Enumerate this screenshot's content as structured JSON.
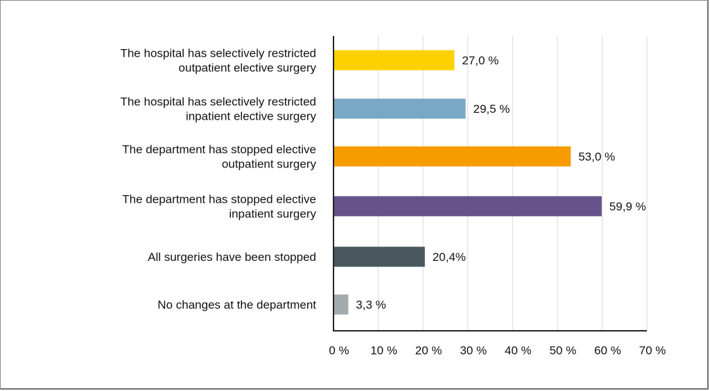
{
  "chart_data": {
    "type": "bar",
    "orientation": "horizontal",
    "categories": [
      [
        "The hospital has selectively restricted",
        "outpatient elective surgery"
      ],
      [
        "The hospital has selectively restricted",
        "inpatient elective surgery"
      ],
      [
        "The department has stopped elective",
        "outpatient surgery"
      ],
      [
        "The department has stopped elective",
        "inpatient surgery"
      ],
      [
        "All surgeries have been stopped"
      ],
      [
        "No changes at the department"
      ]
    ],
    "values": [
      27.0,
      29.5,
      53.0,
      59.9,
      20.4,
      3.3
    ],
    "value_labels": [
      "27,0 %",
      "29,5 %",
      "53,0 %",
      "59,9 %",
      "20,4%",
      "3,3 %"
    ],
    "colors": [
      "#FDD100",
      "#79A8C4",
      "#F69C00",
      "#655289",
      "#49575E",
      "#A4ABAF"
    ],
    "xlim": [
      0,
      70
    ],
    "xticks": [
      0,
      10,
      20,
      30,
      40,
      50,
      60,
      70
    ],
    "xtick_labels": [
      "0 %",
      "10 %",
      "20 %",
      "30 %",
      "40 %",
      "50 %",
      "60 %",
      "70 %"
    ],
    "grid": "vertical",
    "title": "",
    "xlabel": "",
    "ylabel": ""
  }
}
